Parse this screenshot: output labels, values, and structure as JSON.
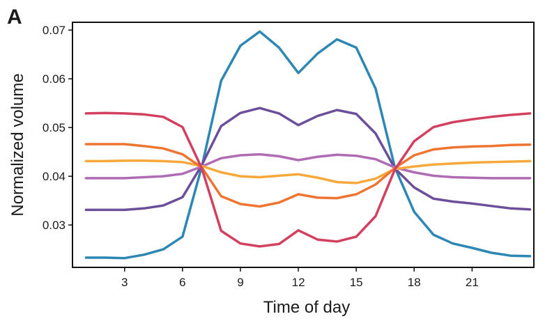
{
  "panel_label": "A",
  "chart_data": {
    "type": "line",
    "xlabel": "Time of day",
    "ylabel": "Normalized volume",
    "xlim": [
      0.3,
      24.2
    ],
    "ylim": [
      0.0213,
      0.0716
    ],
    "xticks": [
      3,
      6,
      9,
      12,
      15,
      18,
      21
    ],
    "yticks": [
      0.03,
      0.04,
      0.05,
      0.06,
      0.07
    ],
    "ytick_labels": [
      "0.03",
      "0.04",
      "0.05",
      "0.06",
      "0.07"
    ],
    "grid": false,
    "x": [
      1,
      2,
      3,
      4,
      5,
      6,
      7,
      8,
      9,
      10,
      11,
      12,
      13,
      14,
      15,
      16,
      17,
      18,
      19,
      20,
      21,
      22,
      23,
      24
    ],
    "series": [
      {
        "color": "#2d87b4",
        "values": [
          0.0233,
          0.0233,
          0.0232,
          0.0239,
          0.025,
          0.0276,
          0.042,
          0.0596,
          0.0668,
          0.0697,
          0.0664,
          0.0612,
          0.0652,
          0.0681,
          0.0664,
          0.058,
          0.0418,
          0.0327,
          0.028,
          0.0262,
          0.0253,
          0.0243,
          0.0237,
          0.0236
        ]
      },
      {
        "color": "#6c4f9a",
        "values": [
          0.0331,
          0.0331,
          0.0331,
          0.0334,
          0.034,
          0.0357,
          0.0423,
          0.0503,
          0.053,
          0.054,
          0.0529,
          0.0505,
          0.0524,
          0.0536,
          0.0528,
          0.0488,
          0.0416,
          0.0377,
          0.0354,
          0.0348,
          0.0344,
          0.0339,
          0.0334,
          0.0332
        ]
      },
      {
        "color": "#b06bb5",
        "values": [
          0.0396,
          0.0396,
          0.0396,
          0.0398,
          0.04,
          0.0405,
          0.042,
          0.0437,
          0.0443,
          0.0445,
          0.0441,
          0.0433,
          0.044,
          0.0444,
          0.0442,
          0.0435,
          0.0418,
          0.0408,
          0.0401,
          0.0398,
          0.0397,
          0.0396,
          0.0396,
          0.0396
        ]
      },
      {
        "color": "#f6a93a",
        "values": [
          0.0431,
          0.0431,
          0.0432,
          0.0432,
          0.0431,
          0.0429,
          0.0421,
          0.0408,
          0.04,
          0.0398,
          0.0401,
          0.0404,
          0.0397,
          0.0388,
          0.0386,
          0.0395,
          0.0415,
          0.042,
          0.0424,
          0.0426,
          0.0428,
          0.0429,
          0.043,
          0.0431
        ]
      },
      {
        "color": "#ee7531",
        "values": [
          0.0466,
          0.0466,
          0.0466,
          0.0462,
          0.0457,
          0.0445,
          0.0418,
          0.0359,
          0.0343,
          0.0338,
          0.0346,
          0.0363,
          0.0356,
          0.0355,
          0.0363,
          0.0383,
          0.0417,
          0.0443,
          0.0455,
          0.0459,
          0.0461,
          0.0462,
          0.0464,
          0.0465
        ]
      },
      {
        "color": "#d3405f",
        "values": [
          0.0529,
          0.053,
          0.0529,
          0.0527,
          0.0522,
          0.0501,
          0.0416,
          0.0288,
          0.0262,
          0.0256,
          0.0261,
          0.0289,
          0.027,
          0.0266,
          0.0276,
          0.0318,
          0.0414,
          0.0472,
          0.0501,
          0.0511,
          0.0517,
          0.0522,
          0.0526,
          0.0529
        ]
      }
    ]
  }
}
